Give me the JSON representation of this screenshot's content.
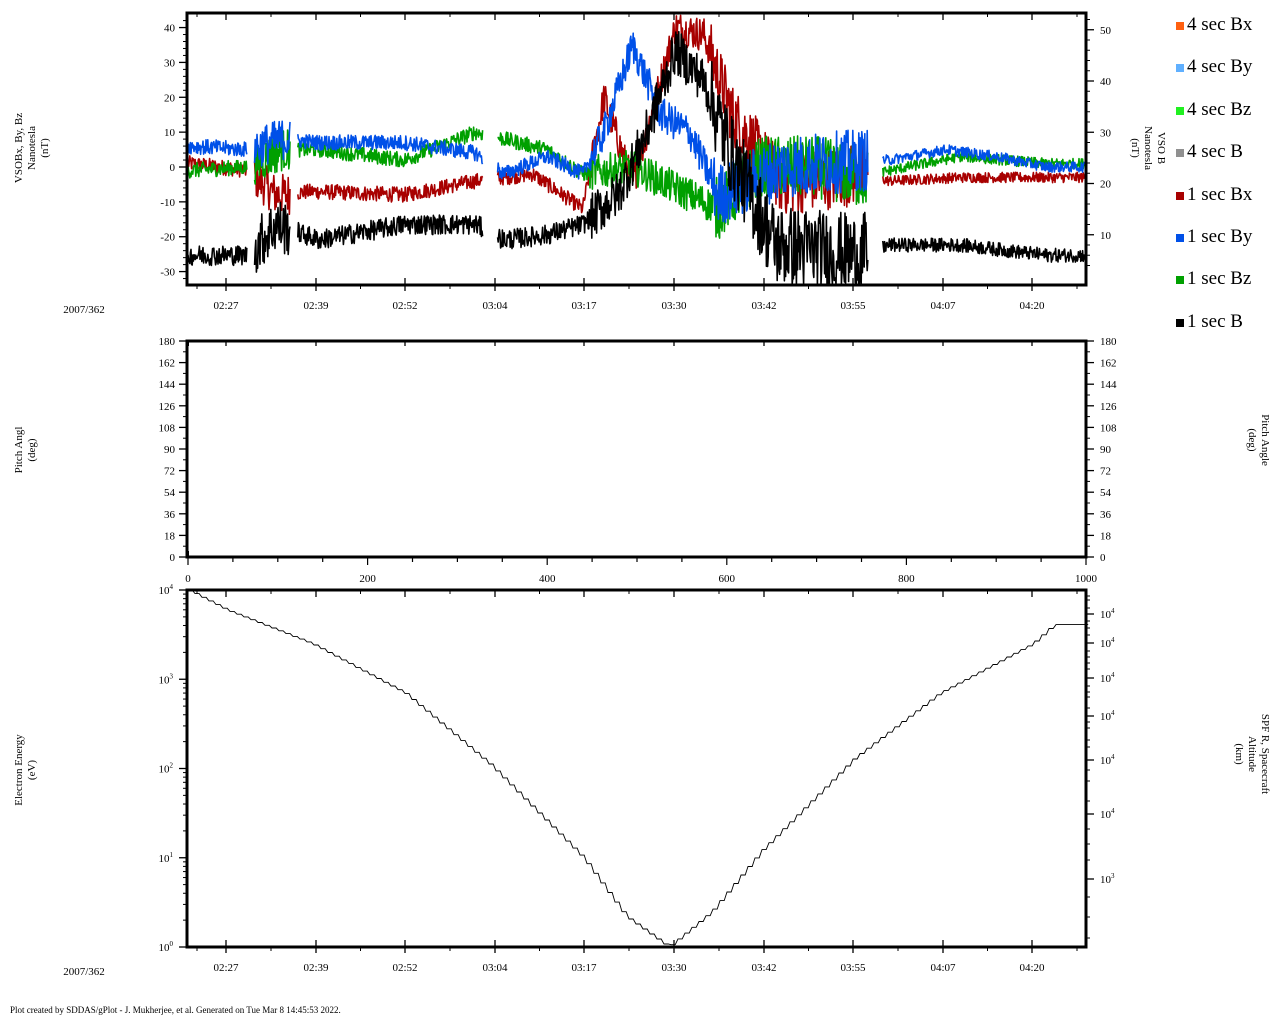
{
  "chart_data": [
    {
      "type": "line",
      "title": "VSO magnetic field components and magnitude",
      "ylabel": "VSOBx, By, Bz\nNanotesla\n(nT)",
      "ylabel_right": "VSO B\nNanotesla\n(nT)",
      "xlabel": "2007/362",
      "x_ticks": [
        "02:27",
        "02:39",
        "02:52",
        "03:04",
        "03:17",
        "03:30",
        "03:42",
        "03:55",
        "04:07",
        "04:20"
      ],
      "ylim": [
        -34,
        44
      ],
      "yticks": [
        40,
        30,
        20,
        10,
        0,
        -10,
        -20,
        -30
      ],
      "ylim_right": [
        2,
        53
      ],
      "yticks_right": [
        50,
        40,
        30,
        20,
        10
      ],
      "grid": false,
      "legend_position": "right",
      "gaps": [
        [
          "02:30",
          "02:31"
        ],
        [
          "02:36",
          "02:37"
        ],
        [
          "03:03",
          "03:05"
        ],
        [
          "03:57",
          "03:59"
        ]
      ],
      "series": [
        {
          "name": "1 sec Bx",
          "color": "#a80000",
          "approx_values": [
            {
              "t": "02:22",
              "v": 1
            },
            {
              "t": "02:30",
              "v": -1
            },
            {
              "t": "02:34",
              "v": -8
            },
            {
              "t": "02:39",
              "v": -7
            },
            {
              "t": "02:52",
              "v": -8
            },
            {
              "t": "03:02",
              "v": -4
            },
            {
              "t": "03:10",
              "v": -2
            },
            {
              "t": "03:17",
              "v": -12
            },
            {
              "t": "03:20",
              "v": 20
            },
            {
              "t": "03:24",
              "v": -5
            },
            {
              "t": "03:30",
              "v": 40
            },
            {
              "t": "03:34",
              "v": 38
            },
            {
              "t": "03:38",
              "v": 15
            },
            {
              "t": "03:45",
              "v": -5
            },
            {
              "t": "03:56",
              "v": -2
            },
            {
              "t": "04:00",
              "v": -4
            },
            {
              "t": "04:10",
              "v": -3
            },
            {
              "t": "04:22",
              "v": -3
            }
          ]
        },
        {
          "name": "1 sec By",
          "color": "#0050e8",
          "approx_values": [
            {
              "t": "02:22",
              "v": 6
            },
            {
              "t": "02:30",
              "v": 5
            },
            {
              "t": "02:35",
              "v": 8
            },
            {
              "t": "02:40",
              "v": 7
            },
            {
              "t": "02:52",
              "v": 7
            },
            {
              "t": "03:02",
              "v": 4
            },
            {
              "t": "03:06",
              "v": -2
            },
            {
              "t": "03:12",
              "v": 3
            },
            {
              "t": "03:17",
              "v": -2
            },
            {
              "t": "03:20",
              "v": 10
            },
            {
              "t": "03:24",
              "v": 35
            },
            {
              "t": "03:28",
              "v": 15
            },
            {
              "t": "03:32",
              "v": 10
            },
            {
              "t": "03:36",
              "v": -8
            },
            {
              "t": "03:45",
              "v": 0
            },
            {
              "t": "03:56",
              "v": 2
            },
            {
              "t": "04:00",
              "v": 2
            },
            {
              "t": "04:08",
              "v": 5
            },
            {
              "t": "04:15",
              "v": 3
            },
            {
              "t": "04:22",
              "v": 0
            }
          ]
        },
        {
          "name": "1 sec Bz",
          "color": "#00a000",
          "approx_values": [
            {
              "t": "02:22",
              "v": -1
            },
            {
              "t": "02:30",
              "v": 0
            },
            {
              "t": "02:35",
              "v": 5
            },
            {
              "t": "02:40",
              "v": 5
            },
            {
              "t": "02:52",
              "v": 2
            },
            {
              "t": "03:02",
              "v": 10
            },
            {
              "t": "03:06",
              "v": 8
            },
            {
              "t": "03:12",
              "v": 5
            },
            {
              "t": "03:17",
              "v": -2
            },
            {
              "t": "03:24",
              "v": 0
            },
            {
              "t": "03:30",
              "v": -6
            },
            {
              "t": "03:36",
              "v": -12
            },
            {
              "t": "03:42",
              "v": 0
            },
            {
              "t": "03:50",
              "v": 0
            },
            {
              "t": "03:56",
              "v": -3
            },
            {
              "t": "04:00",
              "v": -1
            },
            {
              "t": "04:10",
              "v": 3
            },
            {
              "t": "04:22",
              "v": 1
            }
          ]
        },
        {
          "name": "1 sec B",
          "color": "#000000",
          "approx_values": [
            {
              "t": "02:22",
              "v": 6
            },
            {
              "t": "02:30",
              "v": 6
            },
            {
              "t": "02:34",
              "v": 12
            },
            {
              "t": "02:40",
              "v": 9
            },
            {
              "t": "02:52",
              "v": 12
            },
            {
              "t": "03:02",
              "v": 12
            },
            {
              "t": "03:06",
              "v": 9
            },
            {
              "t": "03:12",
              "v": 10
            },
            {
              "t": "03:17",
              "v": 12
            },
            {
              "t": "03:22",
              "v": 18
            },
            {
              "t": "03:26",
              "v": 30
            },
            {
              "t": "03:30",
              "v": 46
            },
            {
              "t": "03:34",
              "v": 40
            },
            {
              "t": "03:38",
              "v": 25
            },
            {
              "t": "03:44",
              "v": 8
            },
            {
              "t": "03:56",
              "v": 6
            },
            {
              "t": "04:00",
              "v": 8
            },
            {
              "t": "04:10",
              "v": 8
            },
            {
              "t": "04:22",
              "v": 6
            }
          ]
        },
        {
          "name": "4 sec Bx",
          "color": "#ff6010",
          "approx_values": []
        },
        {
          "name": "4 sec By",
          "color": "#60b0ff",
          "approx_values": []
        },
        {
          "name": "4 sec Bz",
          "color": "#20f020",
          "approx_values": []
        },
        {
          "name": "4 sec B",
          "color": "#909090",
          "approx_values": []
        }
      ]
    },
    {
      "type": "heatmap",
      "title": "Electron pitch angle (empty)",
      "ylabel": "Pitch Angl\n(deg)",
      "ylabel_right": "Pitch Angle\n(deg)",
      "ylim": [
        0,
        180
      ],
      "yticks": [
        180,
        162,
        144,
        126,
        108,
        90,
        72,
        54,
        36,
        18,
        0
      ],
      "xlim": [
        0,
        1000
      ],
      "x_ticks": [
        "0",
        "200",
        "400",
        "600",
        "800",
        "1000"
      ],
      "grid": false
    },
    {
      "type": "line",
      "title": "Electron energy / SPF R spacecraft altitude",
      "ylabel": "Electron Energy\n(eV)",
      "ylabel_right": "SPF R, Spacecraft\nAltitude\n(km)",
      "xlabel": "2007/362",
      "yscale": "log",
      "ylim": [
        1,
        10000
      ],
      "yticks": [
        "10^4",
        "10^3",
        "10^2",
        "10^1",
        "10^0"
      ],
      "yticks_right": [
        "10^4",
        "10^4",
        "10^4",
        "10^4",
        "10^4",
        "10^4",
        "10^3"
      ],
      "x_ticks": [
        "02:27",
        "02:39",
        "02:52",
        "03:04",
        "03:17",
        "03:30",
        "03:42",
        "03:55",
        "04:07",
        "04:20"
      ],
      "series": [
        {
          "name": "SPF R, Spacecraft Altitude",
          "color": "#000000",
          "approx_values": [
            {
              "t": "02:21",
              "v": 10000
            },
            {
              "t": "02:27",
              "v": 6000
            },
            {
              "t": "02:39",
              "v": 2500
            },
            {
              "t": "02:52",
              "v": 700
            },
            {
              "t": "03:04",
              "v": 110
            },
            {
              "t": "03:17",
              "v": 10
            },
            {
              "t": "03:23",
              "v": 2.2
            },
            {
              "t": "03:29",
              "v": 1
            },
            {
              "t": "03:35",
              "v": 2.5
            },
            {
              "t": "03:42",
              "v": 12
            },
            {
              "t": "03:55",
              "v": 130
            },
            {
              "t": "04:07",
              "v": 700
            },
            {
              "t": "04:20",
              "v": 2500
            },
            {
              "t": "04:23",
              "v": 4100
            }
          ]
        }
      ]
    }
  ],
  "panels": {
    "top": {
      "ylabel": [
        "VSOBx, By, Bz",
        "Nanotesla",
        "(nT)"
      ],
      "ylabel_right": [
        "VSO B",
        "Nanotesla",
        "(nT)"
      ],
      "yticks": [
        "40",
        "30",
        "20",
        "10",
        "0",
        "-10",
        "-20",
        "-30"
      ],
      "yticks_right": [
        "50",
        "40",
        "30",
        "20",
        "10"
      ],
      "date_label": "2007/362",
      "x_ticks": [
        "02:27",
        "02:39",
        "02:52",
        "03:04",
        "03:17",
        "03:30",
        "03:42",
        "03:55",
        "04:07",
        "04:20"
      ]
    },
    "middle": {
      "ylabel": [
        "Pitch Angl",
        "(deg)"
      ],
      "ylabel_right": [
        "Pitch Angle",
        "(deg)"
      ],
      "yticks": [
        "180",
        "162",
        "144",
        "126",
        "108",
        "90",
        "72",
        "54",
        "36",
        "18",
        "0"
      ],
      "x_ticks": [
        "0",
        "200",
        "400",
        "600",
        "800",
        "1000"
      ]
    },
    "bottom": {
      "ylabel": [
        "Electron Energy",
        "(eV)"
      ],
      "ylabel_right": [
        "SPF R, Spacecraft",
        "Altitude",
        "(km)"
      ],
      "yticks_mant": [
        "10",
        "10",
        "10",
        "10",
        "10"
      ],
      "yticks_exp": [
        "4",
        "3",
        "2",
        "1",
        "0"
      ],
      "yticks_right_mant": [
        "10",
        "10",
        "10",
        "10",
        "10",
        "10",
        "10"
      ],
      "yticks_right_exp": [
        "4",
        "4",
        "4",
        "4",
        "4",
        "4",
        "3"
      ],
      "date_label": "2007/362",
      "x_ticks": [
        "02:27",
        "02:39",
        "02:52",
        "03:04",
        "03:17",
        "03:30",
        "03:42",
        "03:55",
        "04:07",
        "04:20"
      ]
    }
  },
  "legend": [
    {
      "label": "4 sec Bx",
      "color": "#ff6010"
    },
    {
      "label": "4 sec By",
      "color": "#60b0ff"
    },
    {
      "label": "4 sec Bz",
      "color": "#20f020"
    },
    {
      "label": "4 sec B",
      "color": "#909090"
    },
    {
      "label": "1 sec Bx",
      "color": "#a80000"
    },
    {
      "label": "1 sec By",
      "color": "#0050e8"
    },
    {
      "label": "1 sec Bz",
      "color": "#00a000"
    },
    {
      "label": "1 sec B",
      "color": "#000000"
    }
  ],
  "footer": "Plot created by SDDAS/gPlot - J. Mukherjee, et al.  Generated on Tue Mar 8 14:45:53 2022."
}
